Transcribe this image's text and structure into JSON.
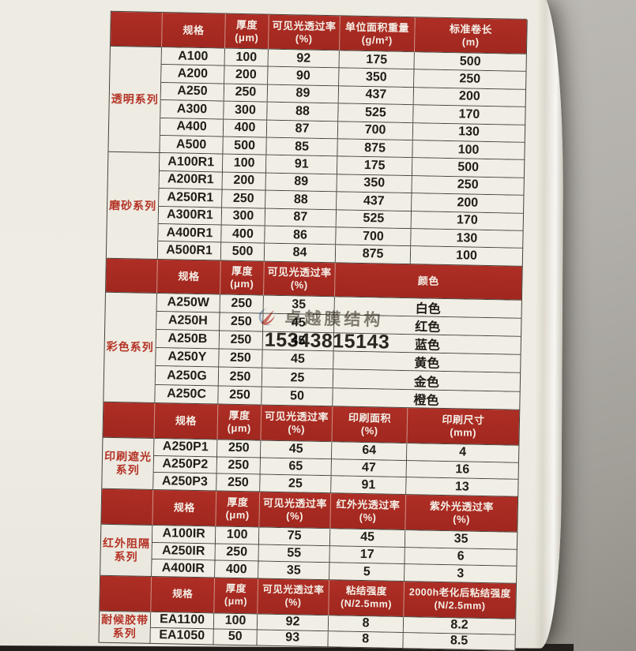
{
  "colors": {
    "header_red": "#a82a22",
    "category_red": "#b53427",
    "paper": "#edebe1",
    "cell_bg": "#f0eee5",
    "line": "#45423c",
    "backdrop_gray": "#b0ada8",
    "logo_red": "#c8453a",
    "logo_blue": "#8ba5cf"
  },
  "watermark": {
    "logo_icon": "swirl-brush-logo",
    "brand": "卓越膜结构",
    "phone": "15343815143"
  },
  "table": {
    "bands": [
      {
        "headers": [
          [
            "规格"
          ],
          [
            "厚度",
            "(μm)"
          ],
          [
            "可见光透过率",
            "(%)"
          ],
          [
            "单位面积重量",
            "(g/m²)"
          ],
          [
            "标准卷长",
            "(m)"
          ]
        ],
        "categories": [
          {
            "label": "透明系列",
            "span": 6
          },
          {
            "label": "磨砂系列",
            "span": 6
          }
        ],
        "rows": [
          [
            "A100",
            "100",
            "92",
            "175",
            "500"
          ],
          [
            "A200",
            "200",
            "90",
            "350",
            "250"
          ],
          [
            "A250",
            "250",
            "89",
            "437",
            "200"
          ],
          [
            "A300",
            "300",
            "88",
            "525",
            "170"
          ],
          [
            "A400",
            "400",
            "87",
            "700",
            "130"
          ],
          [
            "A500",
            "500",
            "85",
            "875",
            "100"
          ],
          [
            "A100R1",
            "100",
            "91",
            "175",
            "500"
          ],
          [
            "A200R1",
            "200",
            "89",
            "350",
            "250"
          ],
          [
            "A250R1",
            "250",
            "88",
            "437",
            "200"
          ],
          [
            "A300R1",
            "300",
            "87",
            "525",
            "170"
          ],
          [
            "A400R1",
            "400",
            "86",
            "700",
            "130"
          ],
          [
            "A500R1",
            "500",
            "84",
            "875",
            "100"
          ]
        ]
      },
      {
        "headers": [
          [
            "规格"
          ],
          [
            "厚度",
            "(μm)"
          ],
          [
            "可见光透过率",
            "(%)"
          ],
          [
            "颜色"
          ]
        ],
        "categories": [
          {
            "label": "彩色系列",
            "span": 6
          }
        ],
        "rows": [
          [
            "A250W",
            "250",
            "35",
            "白色"
          ],
          [
            "A250H",
            "250",
            "45",
            "红色"
          ],
          [
            "A250B",
            "250",
            "45",
            "蓝色"
          ],
          [
            "A250Y",
            "250",
            "45",
            "黄色"
          ],
          [
            "A250G",
            "250",
            "25",
            "金色"
          ],
          [
            "A250C",
            "250",
            "50",
            "橙色"
          ]
        ]
      },
      {
        "headers": [
          [
            "规格"
          ],
          [
            "厚度",
            "(μm)"
          ],
          [
            "可见光透过率",
            "(%)"
          ],
          [
            "印刷面积",
            "(%)"
          ],
          [
            "印刷尺寸",
            "(mm)"
          ]
        ],
        "categories": [
          {
            "label": "印刷遮光\n系列",
            "span": 3
          }
        ],
        "rows": [
          [
            "A250P1",
            "250",
            "45",
            "64",
            "4"
          ],
          [
            "A250P2",
            "250",
            "65",
            "47",
            "16"
          ],
          [
            "A250P3",
            "250",
            "25",
            "91",
            "13"
          ]
        ]
      },
      {
        "headers": [
          [
            "规格"
          ],
          [
            "厚度",
            "(μm)"
          ],
          [
            "可见光透过率",
            "(%)"
          ],
          [
            "红外光透过率",
            "(%)"
          ],
          [
            "紫外光透过率",
            "(%)"
          ]
        ],
        "categories": [
          {
            "label": "红外阻隔\n系列",
            "span": 3
          }
        ],
        "rows": [
          [
            "A100IR",
            "100",
            "75",
            "45",
            "35"
          ],
          [
            "A250IR",
            "250",
            "55",
            "17",
            "6"
          ],
          [
            "A400IR",
            "400",
            "35",
            "5",
            "3"
          ]
        ]
      },
      {
        "headers": [
          [
            "规格"
          ],
          [
            "厚度",
            "(μm)"
          ],
          [
            "可见光透过率",
            "(%)"
          ],
          [
            "粘结强度",
            "(N/2.5mm)"
          ],
          [
            "2000h老化后粘结强度",
            "(N/2.5mm)"
          ]
        ],
        "categories": [
          {
            "label": "耐候胶带\n系列",
            "span": 2
          }
        ],
        "rows": [
          [
            "EA1100",
            "100",
            "92",
            "8",
            "8.2"
          ],
          [
            "EA1050",
            "50",
            "93",
            "8",
            "8.5"
          ]
        ]
      }
    ]
  }
}
